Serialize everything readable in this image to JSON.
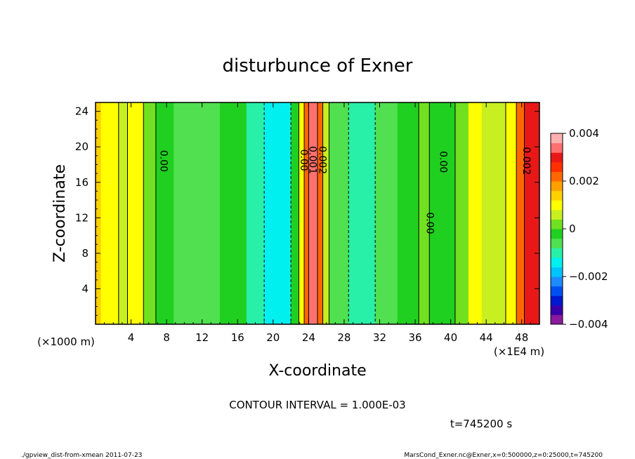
{
  "chart_data": {
    "type": "heatmap",
    "title": "disturbunce of Exner",
    "xlabel": "X-coordinate",
    "ylabel": "Z-coordinate",
    "x_unit_left": "(×1000 m)",
    "x_unit_right": "(×1E4 m)",
    "xlim": [
      0,
      50
    ],
    "ylim": [
      0,
      25
    ],
    "x_ticks": [
      4,
      8,
      12,
      16,
      20,
      24,
      28,
      32,
      36,
      40,
      44,
      48
    ],
    "y_ticks": [
      4,
      8,
      12,
      16,
      20,
      24
    ],
    "contour_interval_text": "CONTOUR INTERVAL = 1.000E-03",
    "time_text": "t=745200 s",
    "colorbar": {
      "min": -0.004,
      "max": 0.004,
      "tick_values": [
        0.004,
        0.002,
        0,
        -0.002,
        -0.004
      ],
      "tick_labels": [
        "0.004",
        "0.002",
        "0",
        "−0.002",
        "−0.004"
      ],
      "colors": [
        "#8a1a9e",
        "#3a00a8",
        "#0018d0",
        "#0050f0",
        "#1c8cff",
        "#00c4ff",
        "#00f0f0",
        "#28f0a8",
        "#50e050",
        "#20d020",
        "#70e020",
        "#c8f020",
        "#ffff00",
        "#ffd000",
        "#ffa000",
        "#ff6800",
        "#ff3000",
        "#e81818",
        "#ff7070",
        "#ffb0b0"
      ]
    },
    "contour_labels": [
      {
        "x": 7.3,
        "z": 18.4,
        "text": "0.00"
      },
      {
        "x": 23.1,
        "z": 18.5,
        "text": "0.00"
      },
      {
        "x": 24.1,
        "z": 18.5,
        "text": "0.001"
      },
      {
        "x": 25.2,
        "z": 18.5,
        "text": "0.002"
      },
      {
        "x": 37.3,
        "z": 11.4,
        "text": "0.00"
      },
      {
        "x": 38.8,
        "z": 18.3,
        "text": "0.00"
      },
      {
        "x": 48.2,
        "z": 18.4,
        "text": "0.002"
      }
    ],
    "field_bands": [
      {
        "x0": 0.0,
        "x1": 0.6,
        "v": 0.0015
      },
      {
        "x0": 0.6,
        "x1": 1.2,
        "v": 0.0012
      },
      {
        "x0": 1.2,
        "x1": 2.6,
        "v": 0.0011
      },
      {
        "x0": 2.6,
        "x1": 3.6,
        "v": 0.0004
      },
      {
        "x0": 3.6,
        "x1": 5.4,
        "v": 0.0012
      },
      {
        "x0": 5.4,
        "x1": 6.8,
        "v": 0.0003
      },
      {
        "x0": 6.8,
        "x1": 8.8,
        "v": -0.0002
      },
      {
        "x0": 8.8,
        "x1": 11.0,
        "v": -0.0008
      },
      {
        "x0": 11.0,
        "x1": 14.0,
        "v": -0.0005
      },
      {
        "x0": 14.0,
        "x1": 17.0,
        "v": -0.0003
      },
      {
        "x0": 17.0,
        "x1": 19.0,
        "v": -0.0009
      },
      {
        "x0": 19.0,
        "x1": 22.0,
        "v": -0.0013
      },
      {
        "x0": 22.0,
        "x1": 22.9,
        "v": -0.0004
      },
      {
        "x0": 22.9,
        "x1": 23.5,
        "v": 0.0008
      },
      {
        "x0": 23.5,
        "x1": 24.0,
        "v": 0.0022
      },
      {
        "x0": 24.0,
        "x1": 25.0,
        "v": 0.0032
      },
      {
        "x0": 25.0,
        "x1": 25.6,
        "v": 0.002
      },
      {
        "x0": 25.6,
        "x1": 26.3,
        "v": 0.0006
      },
      {
        "x0": 26.3,
        "x1": 28.5,
        "v": -0.0006
      },
      {
        "x0": 28.5,
        "x1": 31.5,
        "v": -0.0011
      },
      {
        "x0": 31.5,
        "x1": 34.0,
        "v": -0.0005
      },
      {
        "x0": 34.0,
        "x1": 36.4,
        "v": -0.0003
      },
      {
        "x0": 36.4,
        "x1": 37.6,
        "v": 0.0002
      },
      {
        "x0": 37.6,
        "x1": 40.5,
        "v": -0.0002
      },
      {
        "x0": 40.5,
        "x1": 42.0,
        "v": 0.0002
      },
      {
        "x0": 42.0,
        "x1": 43.5,
        "v": 0.0008
      },
      {
        "x0": 43.5,
        "x1": 46.2,
        "v": 0.0004
      },
      {
        "x0": 46.2,
        "x1": 47.4,
        "v": 0.0012
      },
      {
        "x0": 47.4,
        "x1": 48.3,
        "v": 0.002
      },
      {
        "x0": 48.3,
        "x1": 50.0,
        "v": 0.003
      }
    ]
  },
  "footer": {
    "left": "./gpview_dist-from-xmean   2011-07-23",
    "right": "MarsCond_Exner.nc@Exner,x=0:500000,z=0:25000,t=745200"
  }
}
